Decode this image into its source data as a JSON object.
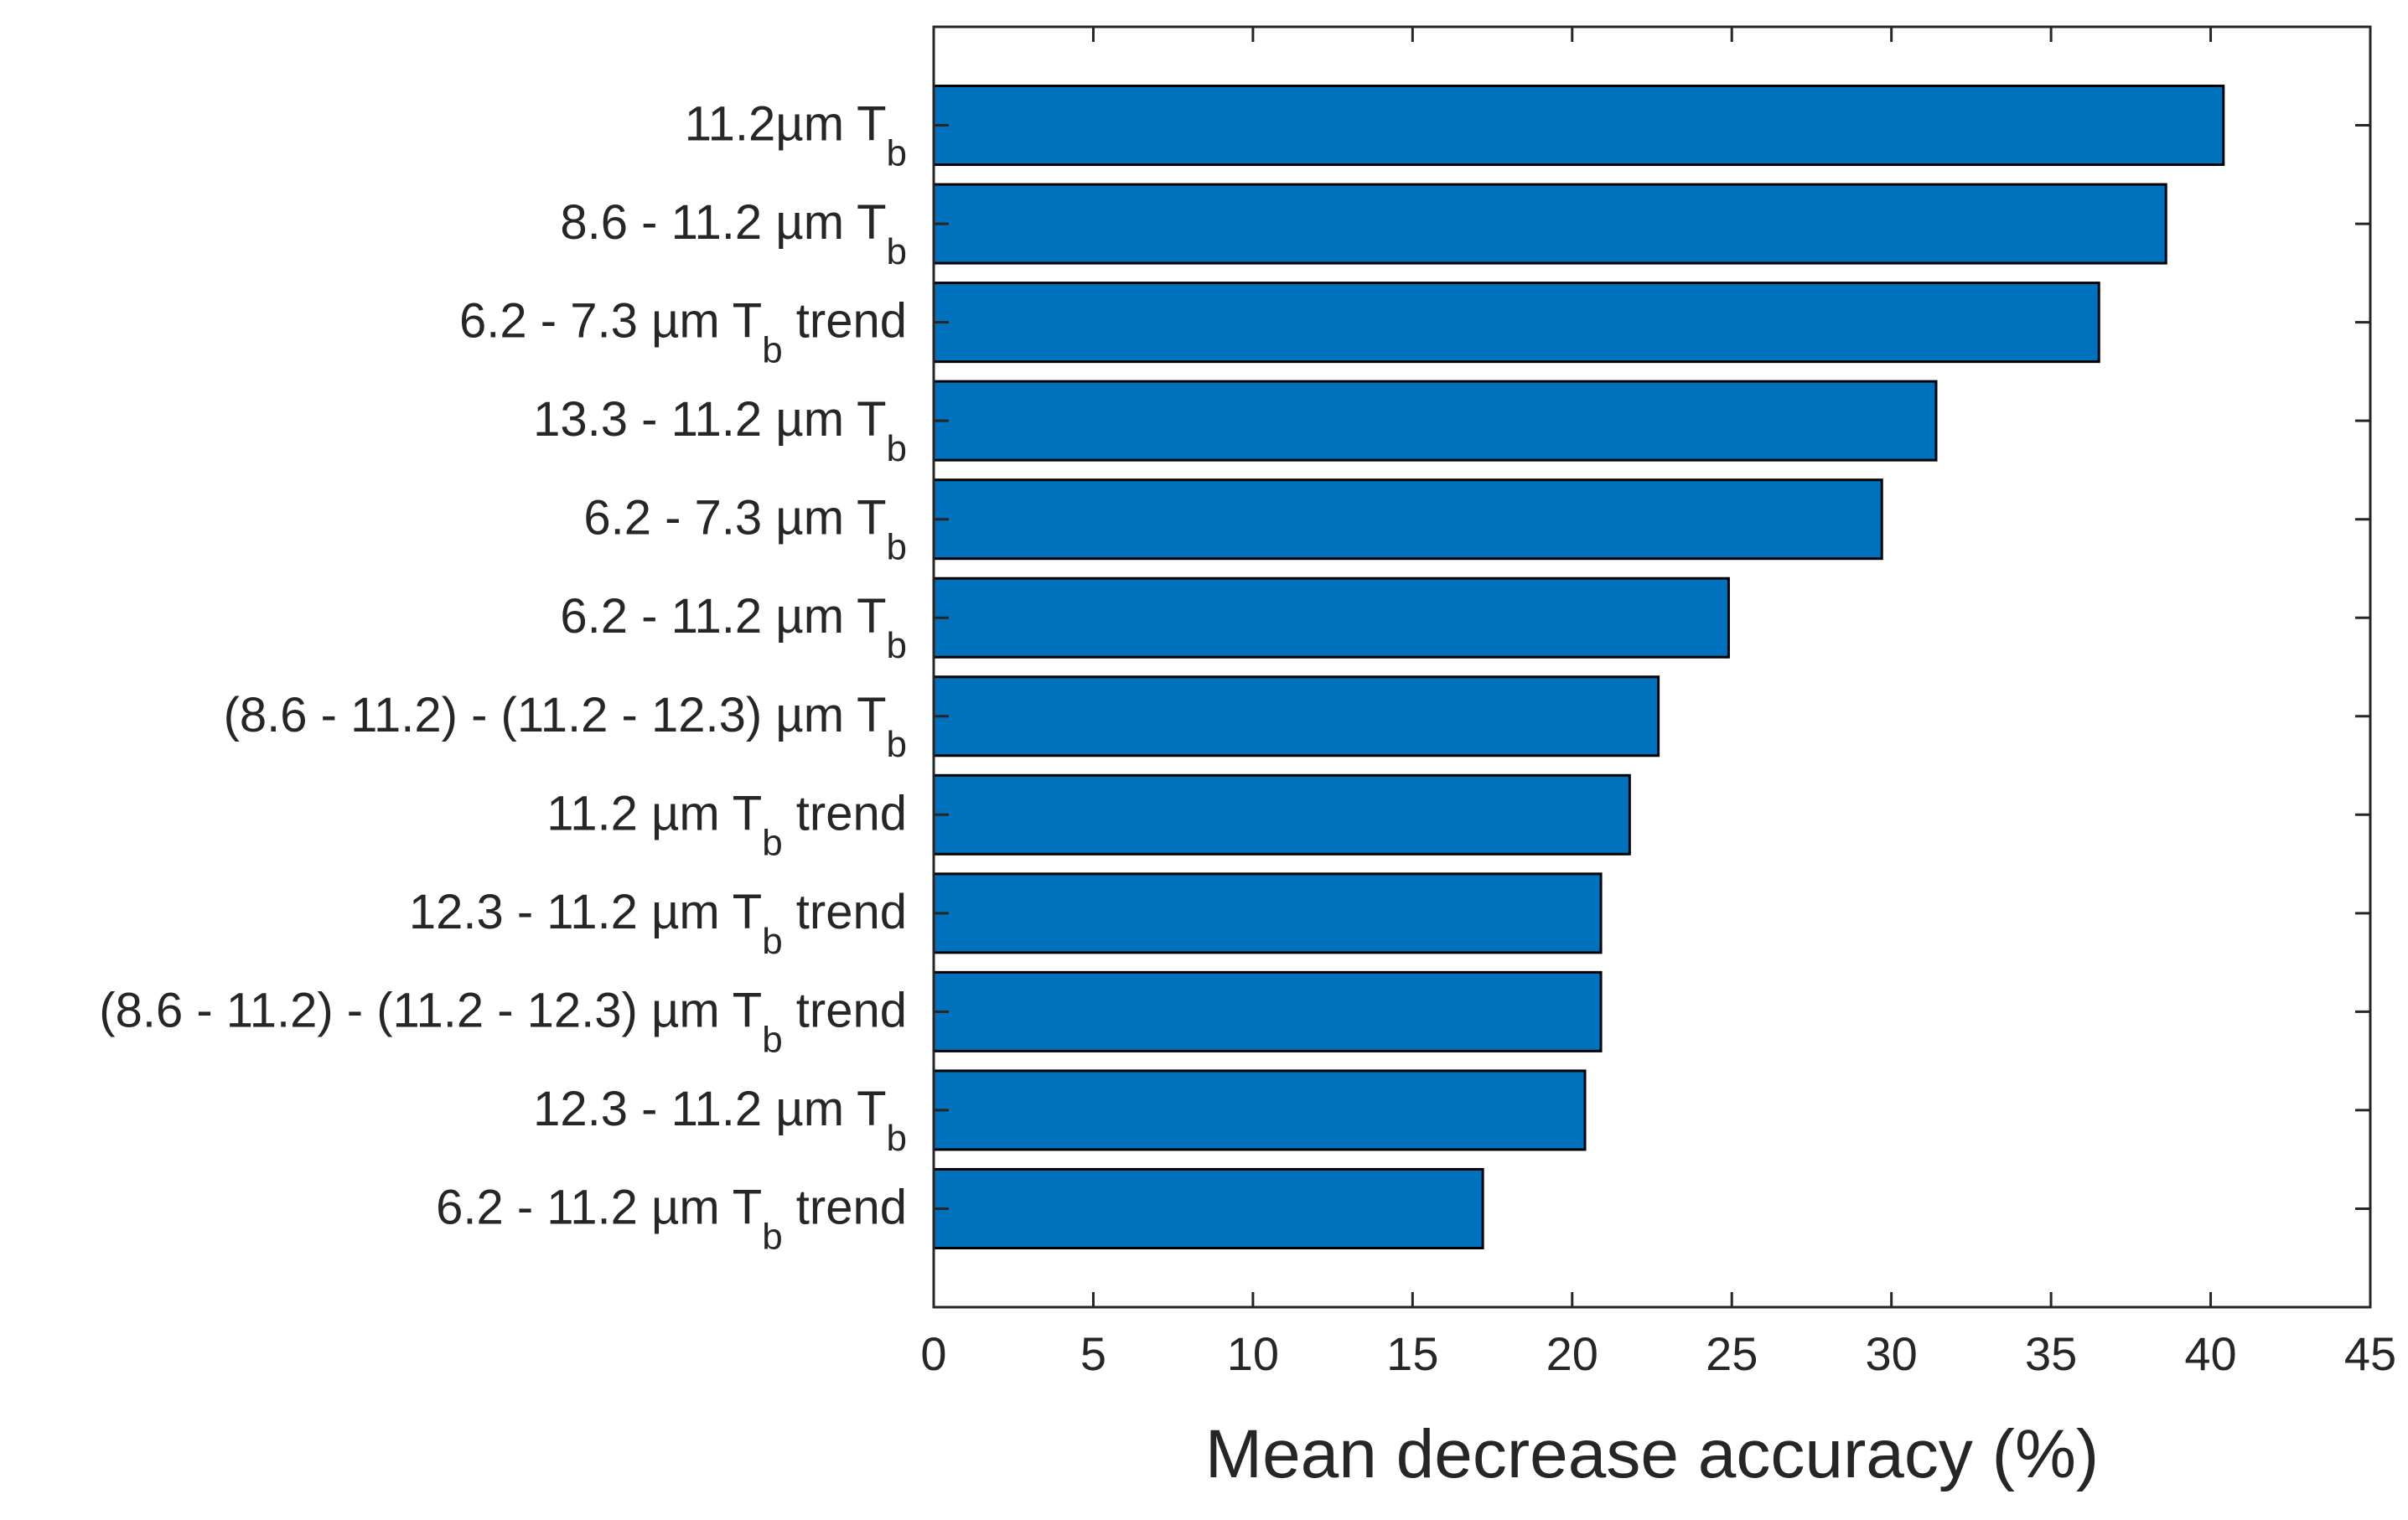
{
  "chart_data": {
    "type": "bar",
    "orientation": "horizontal",
    "title": "",
    "xlabel": "Mean decrease accuracy (%)",
    "ylabel": "",
    "xlim": [
      0,
      45
    ],
    "xticks": [
      0,
      5,
      10,
      15,
      20,
      25,
      30,
      35,
      40,
      45
    ],
    "grid": false,
    "bar_color": "#0072BD",
    "categories": [
      {
        "base": "11.2µm T",
        "sub": "b",
        "suffix": ""
      },
      {
        "base": "8.6 - 11.2 µm T",
        "sub": "b",
        "suffix": ""
      },
      {
        "base": "6.2 - 7.3 µm T",
        "sub": "b",
        "suffix": " trend"
      },
      {
        "base": "13.3 - 11.2 µm T",
        "sub": "b",
        "suffix": ""
      },
      {
        "base": "6.2 - 7.3 µm T",
        "sub": "b",
        "suffix": ""
      },
      {
        "base": "6.2 - 11.2 µm T",
        "sub": "b",
        "suffix": ""
      },
      {
        "base": "(8.6 - 11.2) - (11.2 - 12.3) µm T",
        "sub": "b",
        "suffix": ""
      },
      {
        "base": "11.2 µm T",
        "sub": "b",
        "suffix": " trend"
      },
      {
        "base": "12.3 - 11.2 µm T",
        "sub": "b",
        "suffix": " trend"
      },
      {
        "base": "(8.6 - 11.2) - (11.2 - 12.3) µm T",
        "sub": "b",
        "suffix": " trend"
      },
      {
        "base": "12.3 - 11.2 µm T",
        "sub": "b",
        "suffix": ""
      },
      {
        "base": "6.2 - 11.2 µm T",
        "sub": "b",
        "suffix": " trend"
      }
    ],
    "values": [
      40.4,
      38.6,
      36.5,
      31.4,
      29.7,
      24.9,
      22.7,
      21.8,
      20.9,
      20.9,
      20.4,
      17.2
    ]
  }
}
